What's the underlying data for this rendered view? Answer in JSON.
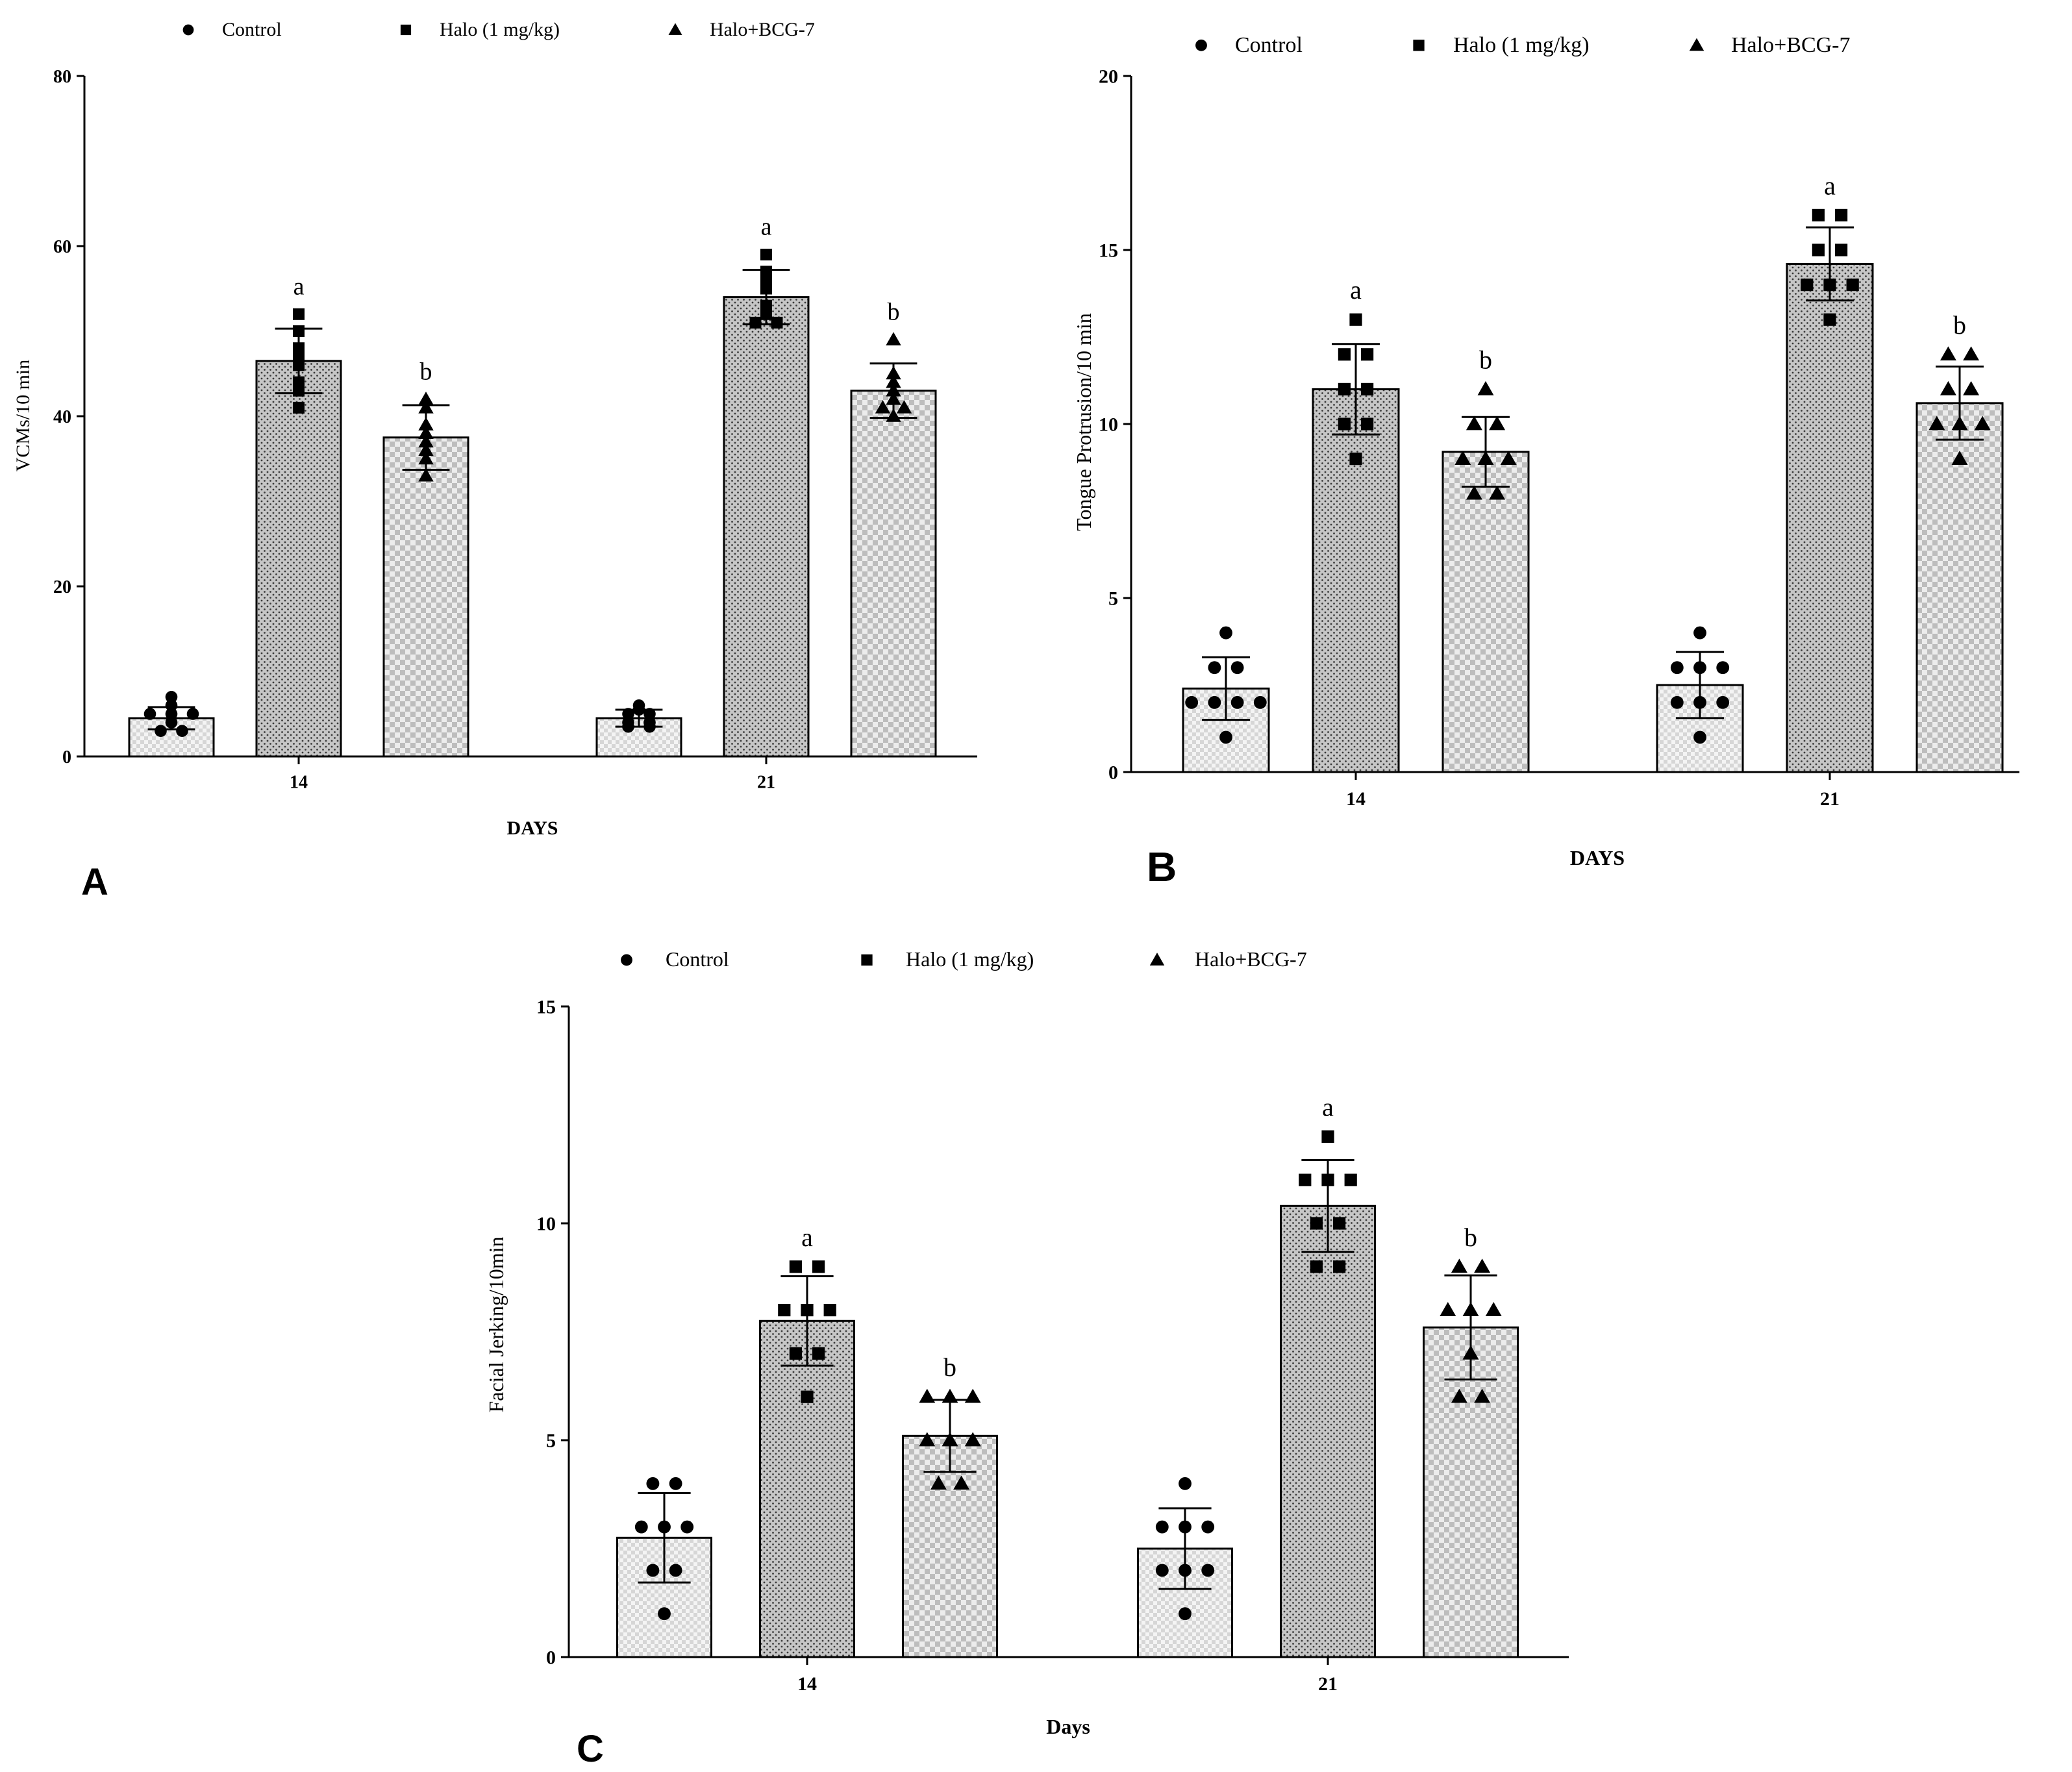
{
  "chart_data": [
    {
      "type": "bar",
      "panel_label": "A",
      "categories": [
        "14",
        "21"
      ],
      "xlabel": "DAYS",
      "ylabel": "VCMs/10 min",
      "ylim": [
        0,
        80
      ],
      "yticks": [
        0,
        20,
        40,
        60,
        80
      ],
      "legend": [
        "Control",
        "Halo (1 mg/kg)",
        "Halo+BCG-7"
      ],
      "legend_position": "top",
      "series": [
        {
          "name": "Control",
          "marker": "circle",
          "values": [
            4.5,
            4.5
          ],
          "errors": [
            1.3,
            1.0
          ],
          "points": [
            [
              3,
              4,
              5,
              5,
              5,
              6,
              7,
              3
            ],
            [
              3.5,
              4,
              4,
              5,
              5,
              5.5,
              6,
              3.5
            ]
          ],
          "sig": [
            "",
            ""
          ]
        },
        {
          "name": "Halo (1 mg/kg)",
          "marker": "square",
          "values": [
            46.5,
            54
          ],
          "errors": [
            3.8,
            3.2
          ],
          "points": [
            [
              41,
              44,
              46,
              47,
              50,
              52,
              43,
              48
            ],
            [
              51,
              52,
              53,
              55,
              56,
              57,
              59,
              51
            ]
          ],
          "sig": [
            "a",
            "a"
          ]
        },
        {
          "name": "Halo+BCG-7",
          "marker": "triangle",
          "values": [
            37.5,
            43
          ],
          "errors": [
            3.8,
            3.2
          ],
          "points": [
            [
              33,
              35,
              37,
              39,
              41,
              42,
              38,
              36
            ],
            [
              40,
              41,
              42,
              43,
              44,
              45,
              49,
              41
            ]
          ],
          "sig": [
            "b",
            "b"
          ]
        }
      ]
    },
    {
      "type": "bar",
      "panel_label": "B",
      "categories": [
        "14",
        "21"
      ],
      "xlabel": "DAYS",
      "ylabel": "Tongue Protrusion/10 min",
      "ylim": [
        0,
        20
      ],
      "yticks": [
        0,
        5,
        10,
        15,
        20
      ],
      "legend": [
        "Control",
        "Halo (1 mg/kg)",
        "Halo+BCG-7"
      ],
      "legend_position": "top",
      "series": [
        {
          "name": "Control",
          "marker": "circle",
          "values": [
            2.4,
            2.5
          ],
          "errors": [
            0.9,
            0.95
          ],
          "points": [
            [
              1,
              2,
              2,
              2,
              2,
              3,
              3,
              4
            ],
            [
              1,
              2,
              2,
              2,
              3,
              3,
              3,
              4
            ]
          ],
          "sig": [
            "",
            ""
          ]
        },
        {
          "name": "Halo (1 mg/kg)",
          "marker": "square",
          "values": [
            11,
            14.6
          ],
          "errors": [
            1.3,
            1.05
          ],
          "points": [
            [
              9,
              10,
              10,
              11,
              11,
              12,
              12,
              13
            ],
            [
              13,
              14,
              14,
              14,
              15,
              15,
              16,
              16
            ]
          ],
          "sig": [
            "a",
            "a"
          ]
        },
        {
          "name": "Halo+BCG-7",
          "marker": "triangle",
          "values": [
            9.2,
            10.6
          ],
          "errors": [
            1.0,
            1.05
          ],
          "points": [
            [
              8,
              8,
              9,
              9,
              9,
              10,
              10,
              11
            ],
            [
              9,
              10,
              10,
              10,
              11,
              11,
              12,
              12
            ]
          ],
          "sig": [
            "b",
            "b"
          ]
        }
      ]
    },
    {
      "type": "bar",
      "panel_label": "C",
      "categories": [
        "14",
        "21"
      ],
      "xlabel": "Days",
      "ylabel": "Facial Jerking/10min",
      "ylim": [
        0,
        15
      ],
      "yticks": [
        0,
        5,
        10,
        15
      ],
      "legend": [
        "Control",
        "Halo (1 mg/kg)",
        "Halo+BCG-7"
      ],
      "legend_position": "top",
      "series": [
        {
          "name": "Control",
          "marker": "circle",
          "values": [
            2.75,
            2.5
          ],
          "errors": [
            1.03,
            0.93
          ],
          "points": [
            [
              1,
              2,
              2,
              3,
              3,
              4,
              4,
              3
            ],
            [
              1,
              2,
              2,
              3,
              3,
              3,
              4,
              2
            ]
          ],
          "sig": [
            "",
            ""
          ]
        },
        {
          "name": "Halo (1 mg/kg)",
          "marker": "square",
          "values": [
            7.75,
            10.4
          ],
          "errors": [
            1.03,
            1.06
          ],
          "points": [
            [
              6,
              7,
              7,
              8,
              8,
              8,
              9,
              9
            ],
            [
              9,
              9,
              10,
              10,
              11,
              11,
              11,
              12
            ]
          ],
          "sig": [
            "a",
            "a"
          ]
        },
        {
          "name": "Halo+BCG-7",
          "marker": "triangle",
          "values": [
            5.1,
            7.6
          ],
          "errors": [
            0.83,
            1.2
          ],
          "points": [
            [
              4,
              4,
              5,
              5,
              6,
              6,
              6,
              5
            ],
            [
              6,
              6,
              7,
              8,
              8,
              9,
              9,
              8
            ]
          ],
          "sig": [
            "b",
            "b"
          ]
        }
      ]
    }
  ]
}
